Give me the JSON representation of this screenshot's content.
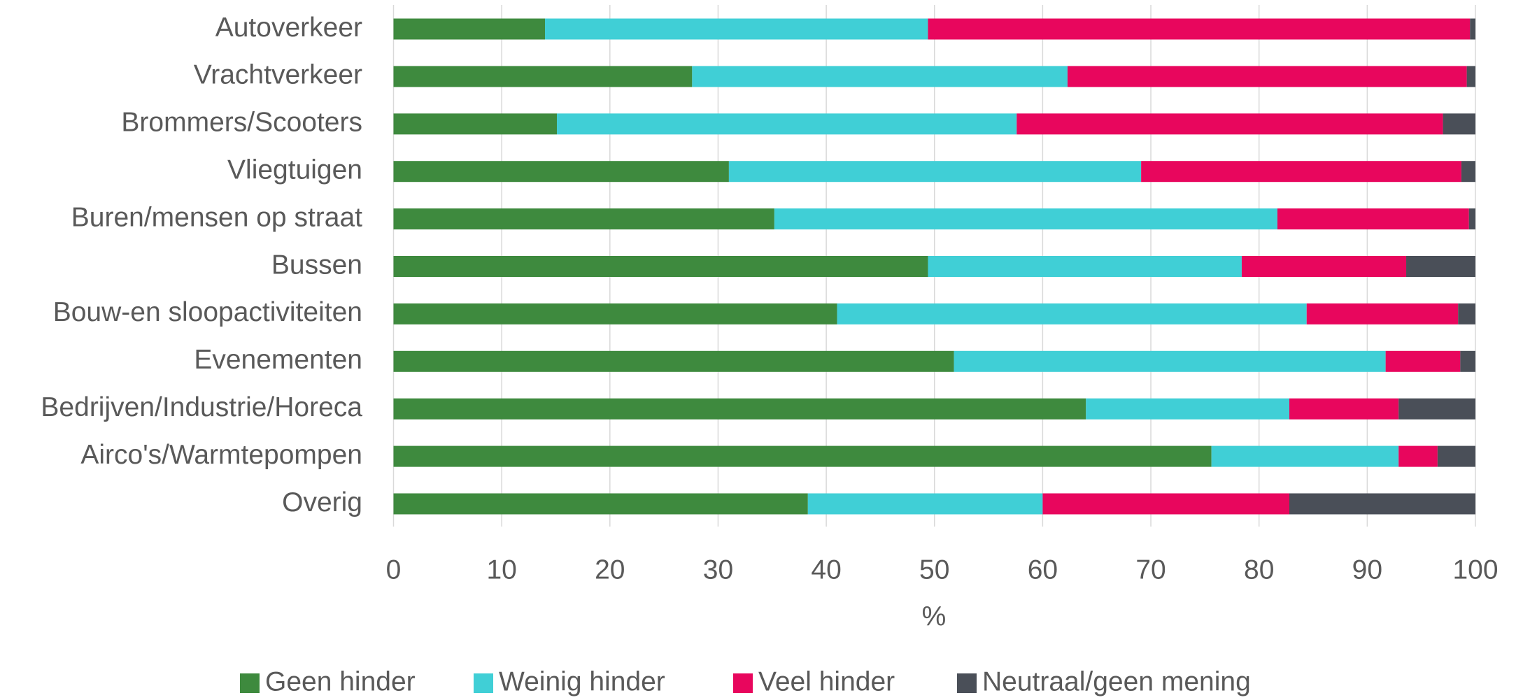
{
  "chart_data": {
    "type": "stacked-bar-horizontal",
    "categories": [
      "Autoverkeer",
      "Vrachtverkeer",
      "Brommers/Scooters",
      "Vliegtuigen",
      "Buren/mensen op straat",
      "Bussen",
      "Bouw-en sloopactiviteiten",
      "Evenementen",
      "Bedrijven/Industrie/Horeca",
      "Airco's/Warmtepompen",
      "Overig"
    ],
    "series": [
      {
        "name": "Geen hinder",
        "color": "#3e8a3e",
        "values": [
          14.0,
          27.6,
          15.1,
          31.0,
          35.2,
          49.4,
          41.0,
          51.8,
          64.0,
          75.6,
          38.3
        ]
      },
      {
        "name": "Weinig hinder",
        "color": "#40cfd6",
        "values": [
          35.4,
          34.7,
          42.5,
          38.1,
          46.5,
          29.0,
          43.4,
          39.9,
          18.8,
          17.3,
          21.7
        ]
      },
      {
        "name": "Veel hinder",
        "color": "#e8065d",
        "values": [
          50.1,
          36.9,
          39.4,
          29.6,
          17.7,
          15.2,
          14.0,
          6.9,
          10.1,
          3.6,
          22.8
        ]
      },
      {
        "name": "Neutraal/geen mening",
        "color": "#4a4f58",
        "values": [
          0.5,
          0.8,
          3.0,
          1.3,
          0.6,
          6.4,
          1.6,
          1.4,
          7.1,
          3.5,
          17.2
        ]
      }
    ],
    "xlabel": "%",
    "xlim": [
      0,
      100
    ],
    "xticks": [
      0,
      10,
      20,
      30,
      40,
      50,
      60,
      70,
      80,
      90,
      100
    ],
    "grid": true,
    "legend": "bottom"
  }
}
